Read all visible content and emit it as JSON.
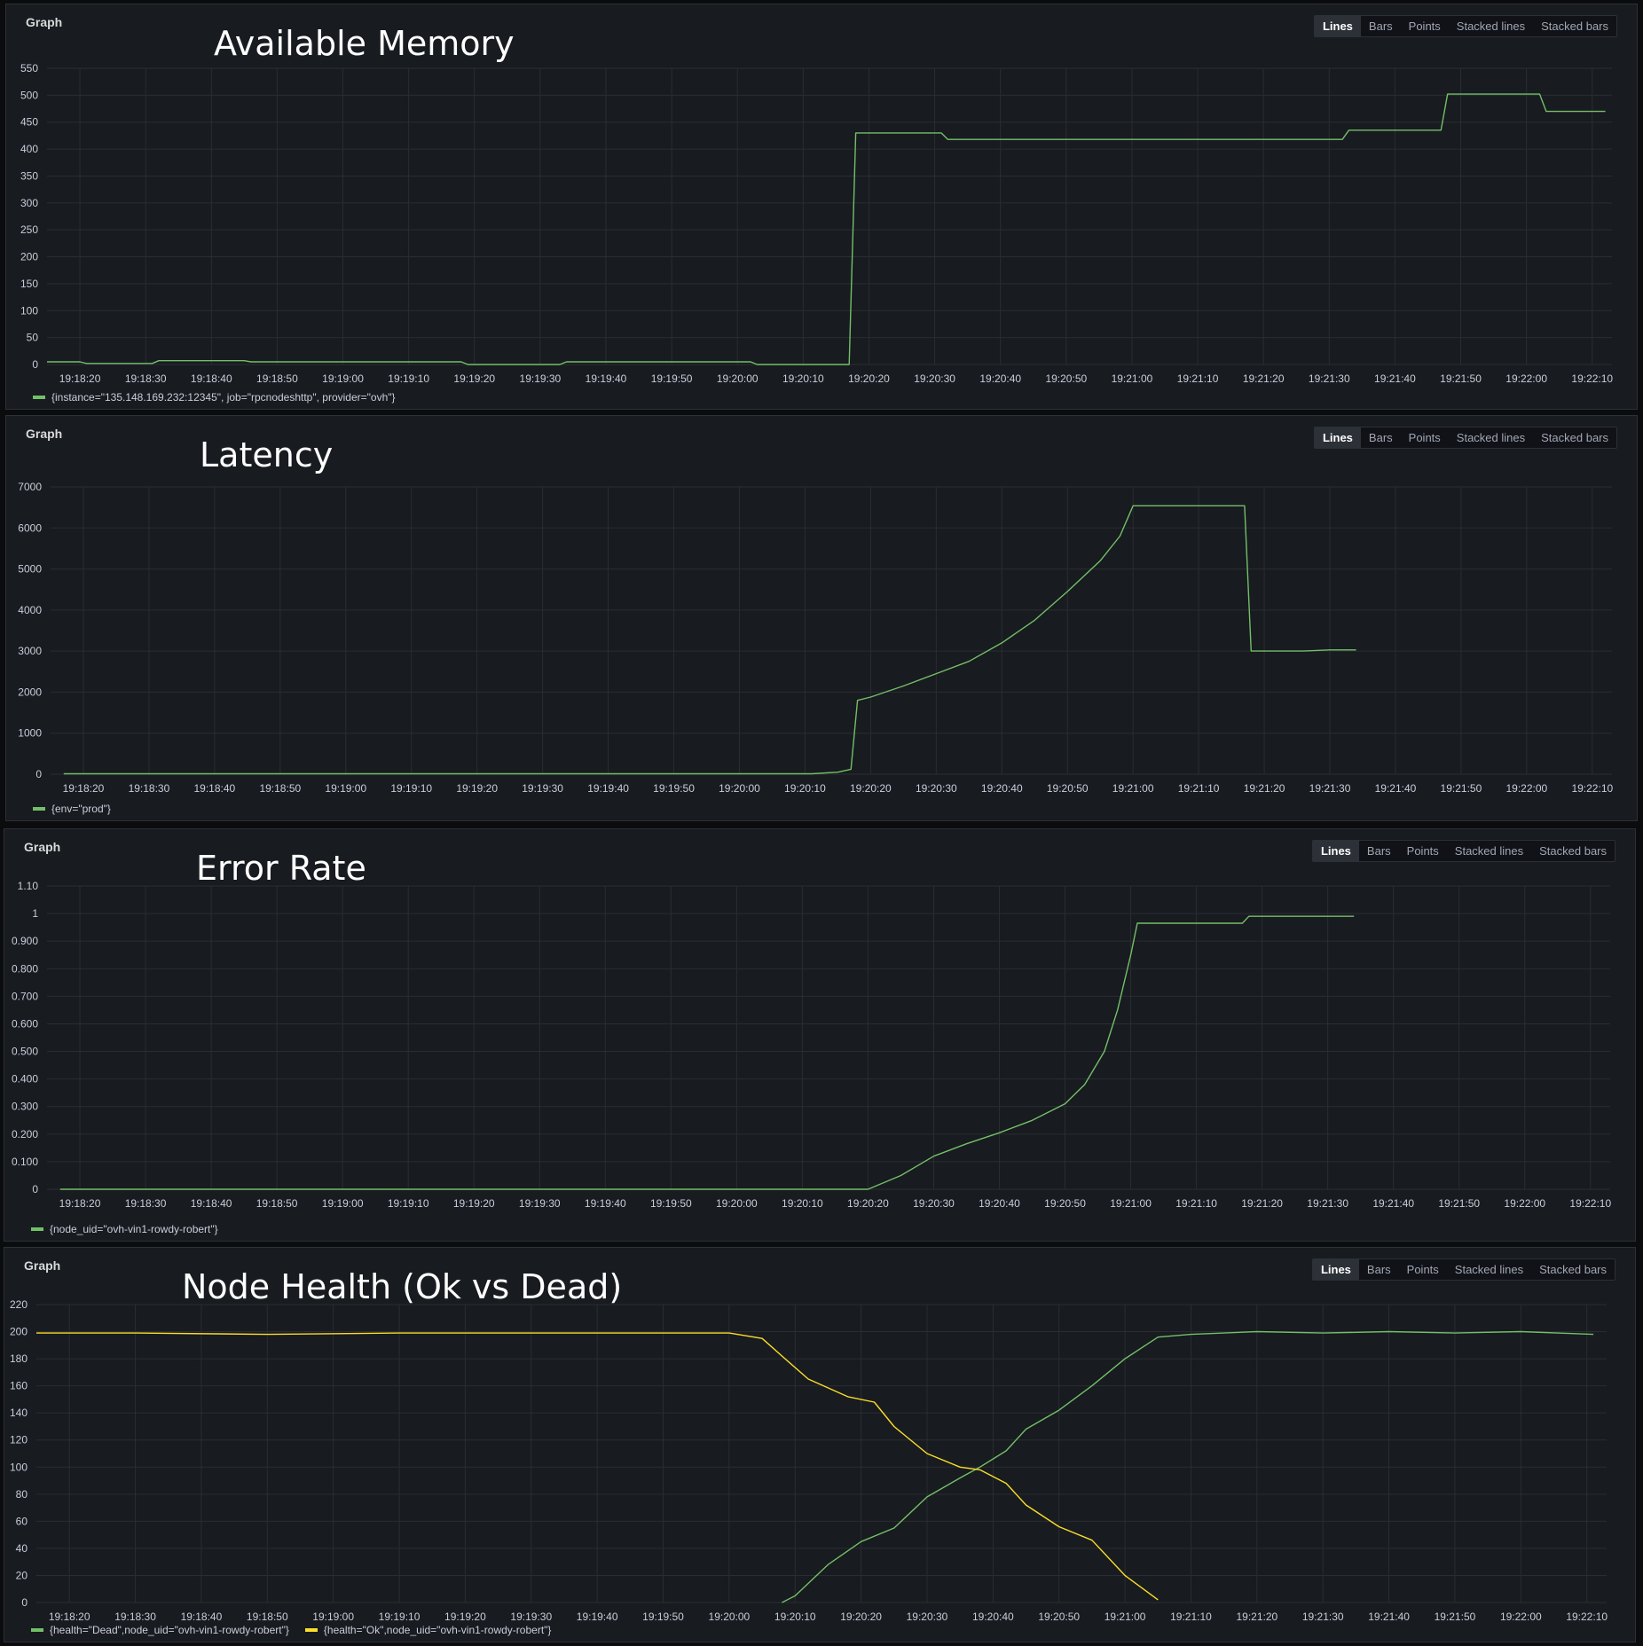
{
  "modes": [
    "Lines",
    "Bars",
    "Points",
    "Stacked lines",
    "Stacked bars"
  ],
  "colors": {
    "green": "#73bf69",
    "yellow": "#fade2a",
    "grid": "#2a2d33",
    "tick": "#ccccdc"
  },
  "chart_data": [
    {
      "type": "line",
      "panel_label": "Graph",
      "title": "Available Memory",
      "active_mode": "Lines",
      "x_ticks": [
        "19:18:20",
        "19:18:30",
        "19:18:40",
        "19:18:50",
        "19:19:00",
        "19:19:10",
        "19:19:20",
        "19:19:30",
        "19:19:40",
        "19:19:50",
        "19:20:00",
        "19:20:10",
        "19:20:20",
        "19:20:30",
        "19:20:40",
        "19:20:50",
        "19:21:00",
        "19:21:10",
        "19:21:20",
        "19:21:30",
        "19:21:40",
        "19:21:50",
        "19:22:00",
        "19:22:10"
      ],
      "y_ticks": [
        "0",
        "50",
        "100",
        "150",
        "200",
        "250",
        "300",
        "350",
        "400",
        "450",
        "500",
        "550"
      ],
      "ylim": [
        0,
        550
      ],
      "series": [
        {
          "name": "{instance=\"135.148.169.232:12345\", job=\"rpcnodeshttp\", provider=\"ovh\"}",
          "color": "#73bf69",
          "points": [
            [
              "19:18:15",
              5
            ],
            [
              "19:18:20",
              5
            ],
            [
              "19:18:21",
              2
            ],
            [
              "19:18:31",
              2
            ],
            [
              "19:18:32",
              7
            ],
            [
              "19:18:45",
              7
            ],
            [
              "19:18:46",
              5
            ],
            [
              "19:19:18",
              5
            ],
            [
              "19:19:19",
              0
            ],
            [
              "19:19:33",
              0
            ],
            [
              "19:19:34",
              5
            ],
            [
              "19:20:02",
              5
            ],
            [
              "19:20:03",
              0
            ],
            [
              "19:20:17",
              0
            ],
            [
              "19:20:18",
              430
            ],
            [
              "19:20:31",
              430
            ],
            [
              "19:20:32",
              418
            ],
            [
              "19:21:32",
              418
            ],
            [
              "19:21:33",
              435
            ],
            [
              "19:21:47",
              435
            ],
            [
              "19:21:48",
              502
            ],
            [
              "19:22:02",
              502
            ],
            [
              "19:22:03",
              470
            ],
            [
              "19:22:12",
              470
            ]
          ]
        }
      ],
      "legend": [
        "{instance=\"135.148.169.232:12345\", job=\"rpcnodeshttp\", provider=\"ovh\"}"
      ]
    },
    {
      "type": "line",
      "panel_label": "Graph",
      "title": "Latency",
      "active_mode": "Lines",
      "x_ticks": [
        "19:18:20",
        "19:18:30",
        "19:18:40",
        "19:18:50",
        "19:19:00",
        "19:19:10",
        "19:19:20",
        "19:19:30",
        "19:19:40",
        "19:19:50",
        "19:20:00",
        "19:20:10",
        "19:20:20",
        "19:20:30",
        "19:20:40",
        "19:20:50",
        "19:21:00",
        "19:21:10",
        "19:21:20",
        "19:21:30",
        "19:21:40",
        "19:21:50",
        "19:22:00",
        "19:22:10"
      ],
      "y_ticks": [
        "0",
        "1000",
        "2000",
        "3000",
        "4000",
        "5000",
        "6000",
        "7000"
      ],
      "ylim": [
        0,
        7000
      ],
      "series": [
        {
          "name": "{env=\"prod\"}",
          "color": "#73bf69",
          "points": [
            [
              "19:18:17",
              10
            ],
            [
              "19:20:11",
              10
            ],
            [
              "19:20:15",
              50
            ],
            [
              "19:20:17",
              120
            ],
            [
              "19:20:18",
              1800
            ],
            [
              "19:20:20",
              1880
            ],
            [
              "19:20:25",
              2150
            ],
            [
              "19:20:30",
              2450
            ],
            [
              "19:20:35",
              2750
            ],
            [
              "19:20:40",
              3200
            ],
            [
              "19:20:45",
              3750
            ],
            [
              "19:20:50",
              4450
            ],
            [
              "19:20:55",
              5200
            ],
            [
              "19:20:58",
              5800
            ],
            [
              "19:21:00",
              6540
            ],
            [
              "19:21:17",
              6540
            ],
            [
              "19:21:18",
              3000
            ],
            [
              "19:21:26",
              3000
            ],
            [
              "19:21:30",
              3030
            ],
            [
              "19:21:34",
              3030
            ]
          ]
        }
      ],
      "legend": [
        "{env=\"prod\"}"
      ]
    },
    {
      "type": "line",
      "panel_label": "Graph",
      "title": "Error Rate",
      "active_mode": "Lines",
      "x_ticks": [
        "19:18:20",
        "19:18:30",
        "19:18:40",
        "19:18:50",
        "19:19:00",
        "19:19:10",
        "19:19:20",
        "19:19:30",
        "19:19:40",
        "19:19:50",
        "19:20:00",
        "19:20:10",
        "19:20:20",
        "19:20:30",
        "19:20:40",
        "19:20:50",
        "19:21:00",
        "19:21:10",
        "19:21:20",
        "19:21:30",
        "19:21:40",
        "19:21:50",
        "19:22:00",
        "19:22:10"
      ],
      "y_ticks": [
        "0",
        "0.100",
        "0.200",
        "0.300",
        "0.400",
        "0.500",
        "0.600",
        "0.700",
        "0.800",
        "0.900",
        "1",
        "1.10"
      ],
      "ylim": [
        0,
        1.1
      ],
      "series": [
        {
          "name": "{node_uid=\"ovh-vin1-rowdy-robert\"}",
          "color": "#73bf69",
          "points": [
            [
              "19:18:17",
              0
            ],
            [
              "19:20:20",
              0
            ],
            [
              "19:20:25",
              0.05
            ],
            [
              "19:20:30",
              0.12
            ],
            [
              "19:20:35",
              0.165
            ],
            [
              "19:20:40",
              0.205
            ],
            [
              "19:20:45",
              0.25
            ],
            [
              "19:20:50",
              0.31
            ],
            [
              "19:20:53",
              0.38
            ],
            [
              "19:20:56",
              0.5
            ],
            [
              "19:20:58",
              0.65
            ],
            [
              "19:21:00",
              0.85
            ],
            [
              "19:21:01",
              0.965
            ],
            [
              "19:21:17",
              0.965
            ],
            [
              "19:21:18",
              0.99
            ],
            [
              "19:21:34",
              0.99
            ]
          ]
        }
      ],
      "legend": [
        "{node_uid=\"ovh-vin1-rowdy-robert\"}"
      ]
    },
    {
      "type": "line",
      "panel_label": "Graph",
      "title": "Node Health (Ok vs Dead)",
      "active_mode": "Lines",
      "x_ticks": [
        "19:18:20",
        "19:18:30",
        "19:18:40",
        "19:18:50",
        "19:19:00",
        "19:19:10",
        "19:19:20",
        "19:19:30",
        "19:19:40",
        "19:19:50",
        "19:20:00",
        "19:20:10",
        "19:20:20",
        "19:20:30",
        "19:20:40",
        "19:20:50",
        "19:21:00",
        "19:21:10",
        "19:21:20",
        "19:21:30",
        "19:21:40",
        "19:21:50",
        "19:22:00",
        "19:22:10"
      ],
      "y_ticks": [
        "0",
        "20",
        "40",
        "60",
        "80",
        "100",
        "120",
        "140",
        "160",
        "180",
        "200",
        "220"
      ],
      "ylim": [
        0,
        220
      ],
      "series": [
        {
          "name": "{health=\"Dead\",node_uid=\"ovh-vin1-rowdy-robert\"}",
          "color": "#73bf69",
          "points": [
            [
              "19:20:08",
              0
            ],
            [
              "19:20:10",
              5
            ],
            [
              "19:20:15",
              28
            ],
            [
              "19:20:20",
              45
            ],
            [
              "19:20:25",
              55
            ],
            [
              "19:20:30",
              78
            ],
            [
              "19:20:35",
              92
            ],
            [
              "19:20:38",
              100
            ],
            [
              "19:20:42",
              112
            ],
            [
              "19:20:45",
              128
            ],
            [
              "19:20:50",
              142
            ],
            [
              "19:20:55",
              160
            ],
            [
              "19:21:00",
              180
            ],
            [
              "19:21:05",
              196
            ],
            [
              "19:21:10",
              198
            ],
            [
              "19:21:20",
              200
            ],
            [
              "19:21:30",
              199
            ],
            [
              "19:21:40",
              200
            ],
            [
              "19:21:50",
              199
            ],
            [
              "19:22:00",
              200
            ],
            [
              "19:22:11",
              198
            ]
          ]
        },
        {
          "name": "{health=\"Ok\",node_uid=\"ovh-vin1-rowdy-robert\"}",
          "color": "#fade2a",
          "points": [
            [
              "19:18:15",
              199
            ],
            [
              "19:18:30",
              199
            ],
            [
              "19:18:50",
              198
            ],
            [
              "19:19:10",
              199
            ],
            [
              "19:19:30",
              199
            ],
            [
              "19:19:50",
              199
            ],
            [
              "19:20:00",
              199
            ],
            [
              "19:20:05",
              195
            ],
            [
              "19:20:08",
              182
            ],
            [
              "19:20:12",
              165
            ],
            [
              "19:20:18",
              152
            ],
            [
              "19:20:22",
              148
            ],
            [
              "19:20:25",
              130
            ],
            [
              "19:20:30",
              110
            ],
            [
              "19:20:35",
              100
            ],
            [
              "19:20:38",
              98
            ],
            [
              "19:20:42",
              88
            ],
            [
              "19:20:45",
              72
            ],
            [
              "19:20:50",
              56
            ],
            [
              "19:20:55",
              46
            ],
            [
              "19:21:00",
              20
            ],
            [
              "19:21:05",
              2
            ]
          ]
        }
      ],
      "legend": [
        "{health=\"Dead\",node_uid=\"ovh-vin1-rowdy-robert\"}",
        "{health=\"Ok\",node_uid=\"ovh-vin1-rowdy-robert\"}"
      ]
    }
  ]
}
